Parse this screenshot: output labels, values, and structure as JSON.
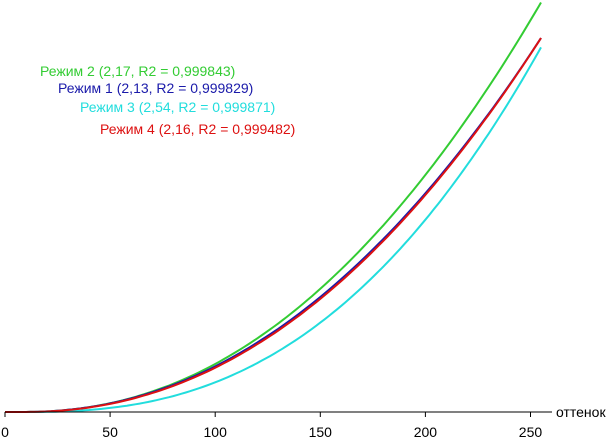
{
  "chart_data": {
    "type": "line",
    "xlabel": "оттенок",
    "ylabel": "",
    "xlim": [
      0,
      255
    ],
    "ylim": [
      0,
      1
    ],
    "xticks": [
      0,
      50,
      100,
      150,
      200,
      250
    ],
    "grid": false,
    "legend_position": "top-left",
    "series": [
      {
        "name": "Режим 2 (2,17, R2 = 0,999843)",
        "color": "#33cc33",
        "gamma": 2.17,
        "scale": 1.095
      },
      {
        "name": "Режим 1 (2,13, R2 = 0,999829)",
        "color": "#1a1aaa",
        "gamma": 2.13,
        "scale": 1.0
      },
      {
        "name": "Режим 3 (2,54, R2 = 0,999871)",
        "color": "#22dddd",
        "gamma": 2.54,
        "scale": 0.975
      },
      {
        "name": "Режим 4 (2,16, R2 = 0,999482)",
        "color": "#dd1111",
        "gamma": 2.16,
        "scale": 1.0
      }
    ]
  }
}
